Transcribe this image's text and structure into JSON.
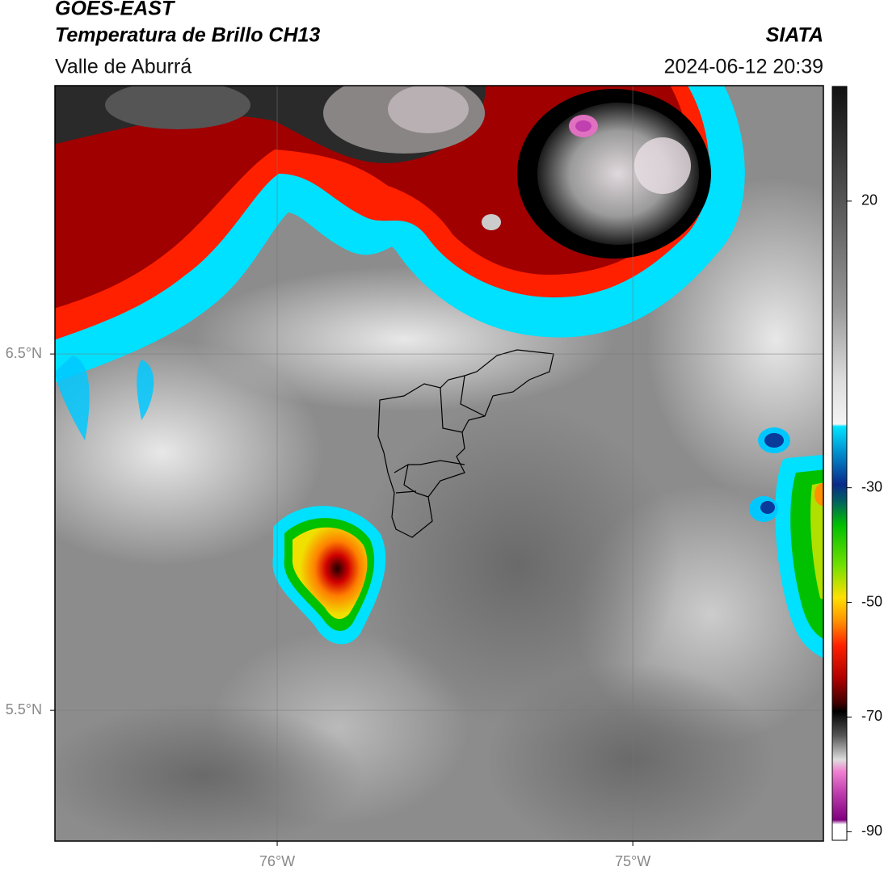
{
  "header": {
    "title": "GOES-EAST",
    "subtitle": "Temperatura de Brillo CH13",
    "region": "Valle de Aburrá",
    "source": "SIATA",
    "datetime": "2024-06-12 20:39"
  },
  "map": {
    "xlim": [
      -76.625,
      -74.464
    ],
    "ylim": [
      5.133,
      7.253
    ],
    "xticks": [
      {
        "value": -76,
        "label": "76°W"
      },
      {
        "value": -75,
        "label": "75°W"
      }
    ],
    "yticks": [
      {
        "value": 6.5,
        "label": "6.5°N"
      },
      {
        "value": 5.5,
        "label": "5.5°N"
      }
    ]
  },
  "colorbar": {
    "lim": [
      -91.5,
      40
    ],
    "ticks": [
      20,
      -30,
      -50,
      -70,
      -90
    ]
  }
}
